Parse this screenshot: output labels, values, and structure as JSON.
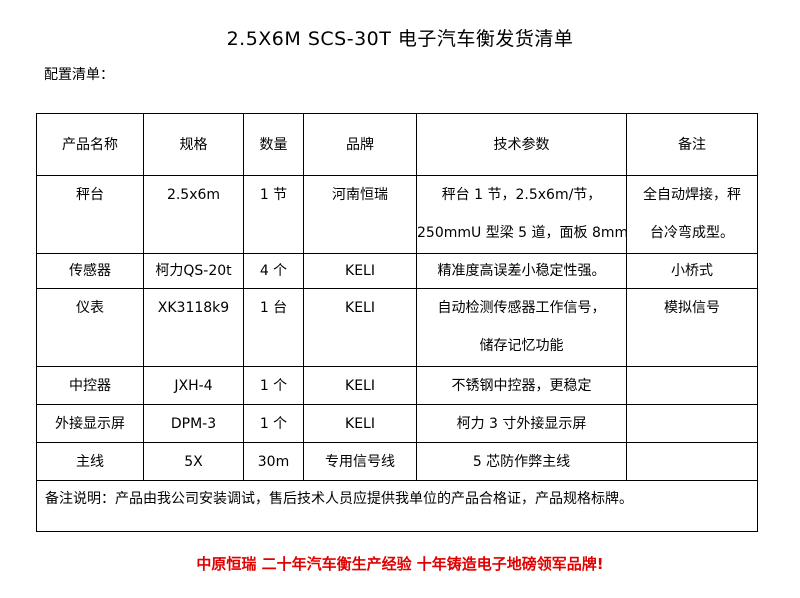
{
  "title": "2.5X6M SCS-30T 电子汽车衡发货清单",
  "subtitle": "配置清单：",
  "headers": [
    "产品名称",
    "规格",
    "数量",
    "品牌",
    "技术参数",
    "备注"
  ],
  "rows": [
    {
      "name": "秤台",
      "spec": "2.5x6m",
      "qty": "1 节",
      "brand": "河南恒瑞",
      "tech": [
        "秤台 1 节，2.5x6m/节，",
        "250mmU 型梁 5 道，面板 8mm"
      ],
      "note": [
        "全自动焊接，秤",
        "台冷弯成型。"
      ]
    },
    {
      "name": "传感器",
      "spec": "柯力QS-20t",
      "qty": "4 个",
      "brand": "KELI",
      "tech": [
        "精准度高误差小稳定性强。"
      ],
      "note": [
        "小桥式"
      ]
    },
    {
      "name": "仪表",
      "spec": "XK3118k9",
      "qty": "1 台",
      "brand": "KELI",
      "tech": [
        "自动检测传感器工作信号，",
        "储存记忆功能"
      ],
      "note": [
        "模拟信号"
      ]
    },
    {
      "name": "中控器",
      "spec": "JXH-4",
      "qty": "1 个",
      "brand": "KELI",
      "tech": [
        "不锈钢中控器，更稳定"
      ],
      "note": [
        ""
      ]
    },
    {
      "name": "外接显示屏",
      "spec": "DPM-3",
      "qty": "1 个",
      "brand": "KELI",
      "tech": [
        "柯力 3 寸外接显示屏"
      ],
      "note": [
        ""
      ]
    },
    {
      "name": "主线",
      "spec": "5X",
      "qty": "30m",
      "brand": "专用信号线",
      "tech": [
        "5 芯防作弊主线"
      ],
      "note": [
        ""
      ]
    }
  ],
  "remark": "备注说明：产品由我公司安装调试，售后技术人员应提供我单位的产品合格证，产品规格标牌。",
  "slogan": "中原恒瑞 二十年汽车衡生产经验 十年铸造电子地磅领军品牌!",
  "colors": {
    "slogan": "#e00000"
  }
}
